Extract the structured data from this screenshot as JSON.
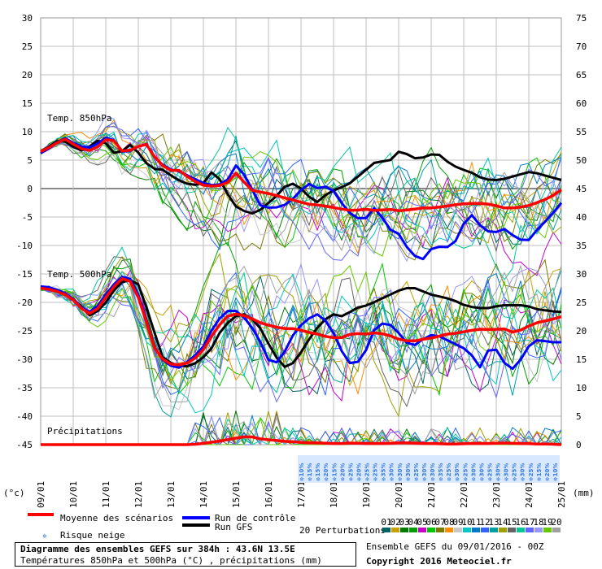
{
  "chart_data": {
    "type": "line",
    "title": "Diagramme des ensembles GEFS sur 384h : 43.6N 13.5E",
    "subtitle": "Températures 850hPa et 500hPa (°C) , précipitations (mm)",
    "ylabel_left": "(°c)",
    "ylabel_right": "(mm)",
    "left_ticks": [
      "30",
      "25",
      "20",
      "15",
      "10",
      "5",
      "0",
      "-5",
      "-10",
      "-15",
      "-20",
      "-25",
      "-30",
      "-35",
      "-40",
      "-45"
    ],
    "right_ticks": [
      "75",
      "70",
      "65",
      "60",
      "55",
      "50",
      "45",
      "40",
      "35",
      "30",
      "25",
      "20",
      "15",
      "10",
      "5",
      "0"
    ],
    "x_tick_labels": [
      "09/01",
      "10/01",
      "11/01",
      "12/01",
      "13/01",
      "14/01",
      "15/01",
      "16/01",
      "17/01",
      "18/01",
      "19/01",
      "20/01",
      "21/01",
      "22/01",
      "23/01",
      "24/01",
      "25/01"
    ],
    "panel_labels": [
      "Temp. 850hPa",
      "Temp. 500hPa",
      "Précipitations"
    ],
    "grid": true,
    "x_step_hours": 6,
    "mean_850": [
      6.5,
      7.5,
      8.8,
      7.6,
      6.5,
      7.4,
      9.3,
      6.6,
      6.8,
      8.2,
      5.1,
      3.2,
      3.2,
      1.6,
      0.6,
      0.4,
      0.7,
      3.0,
      -0.2,
      -0.6,
      -1.0,
      -1.6,
      -2.1,
      -2.7,
      -2.9,
      -3.2,
      -3.6,
      -3.9,
      -3.6,
      -3.9,
      -3.6,
      -3.9,
      -3.7,
      -3.4,
      -3.4,
      -3.1,
      -2.8,
      -2.6,
      -2.6,
      -2.8,
      -3.4,
      -3.4,
      -3.1,
      -2.4,
      -1.6,
      -0.2
    ],
    "control_850": [
      6.2,
      7.4,
      9.0,
      7.8,
      7.0,
      8.0,
      9.5,
      6.5,
      6.7,
      8.3,
      5.0,
      3.5,
      3.0,
      2.0,
      1.0,
      0.5,
      1.0,
      4.5,
      1.0,
      -3.0,
      -3.5,
      -3.0,
      -1.5,
      1.0,
      0.0,
      0.5,
      -2.5,
      -5.0,
      -5.5,
      -3.0,
      -7.0,
      -8.0,
      -11.5,
      -12.5,
      -10.0,
      -10.5,
      -9.0,
      -4.0,
      -6.5,
      -8.0,
      -7.0,
      -8.5,
      -9.5,
      -7.0,
      -5.0,
      -2.5
    ],
    "gfs_850": [
      6.5,
      7.6,
      8.8,
      7.5,
      6.7,
      7.6,
      9.0,
      6.2,
      6.6,
      8.0,
      5.0,
      3.5,
      3.3,
      2.0,
      1.0,
      0.6,
      1.0,
      3.5,
      0.0,
      -3.0,
      -4.0,
      -4.5,
      -3.0,
      -1.5,
      0.5,
      1.0,
      -1.0,
      -2.5,
      -1.0,
      0.0,
      0.5,
      2.0,
      3.5,
      5.0,
      4.5,
      6.5,
      6.0,
      5.0,
      6.0,
      6.0,
      4.5,
      3.5,
      3.0,
      2.0,
      1.5,
      1.5,
      2.0,
      2.5,
      3.0,
      2.5,
      2.0,
      1.5
    ],
    "mean_500": [
      -17.5,
      -17.8,
      -18.5,
      -19.8,
      -22.2,
      -21.0,
      -18.0,
      -15.8,
      -16.5,
      -22.5,
      -29.0,
      -30.8,
      -31.0,
      -30.5,
      -28.5,
      -25.2,
      -22.5,
      -22.0,
      -22.6,
      -23.6,
      -24.2,
      -24.6,
      -24.6,
      -25.2,
      -25.6,
      -26.2,
      -26.2,
      -25.4,
      -25.6,
      -25.3,
      -25.7,
      -26.5,
      -26.9,
      -26.5,
      -26.2,
      -25.6,
      -25.4,
      -25.0,
      -24.7,
      -24.8,
      -24.6,
      -25.4,
      -24.3,
      -23.5,
      -23.1,
      -22.5
    ],
    "control_500": [
      -17.2,
      -17.4,
      -18.3,
      -19.6,
      -22.0,
      -20.5,
      -17.5,
      -15.5,
      -16.0,
      -22.0,
      -29.0,
      -31.0,
      -31.5,
      -30.0,
      -28.0,
      -24.0,
      -21.5,
      -21.5,
      -23.5,
      -27.0,
      -31.5,
      -29.0,
      -25.0,
      -23.0,
      -22.0,
      -24.0,
      -28.5,
      -31.5,
      -29.0,
      -24.0,
      -23.5,
      -25.5,
      -28.0,
      -26.5,
      -25.5,
      -26.5,
      -27.5,
      -28.5,
      -31.5,
      -27.0,
      -30.5,
      -32.0,
      -28.0,
      -26.5,
      -27.0,
      -27.0
    ],
    "gfs_500": [
      -17.5,
      -17.8,
      -18.6,
      -19.8,
      -22.3,
      -21.2,
      -18.0,
      -15.8,
      -16.5,
      -22.5,
      -29.5,
      -31.0,
      -31.3,
      -30.5,
      -28.5,
      -24.5,
      -22.5,
      -22.0,
      -24.0,
      -28.0,
      -31.5,
      -30.5,
      -27.0,
      -24.0,
      -22.0,
      -22.5,
      -21.0,
      -20.5,
      -19.5,
      -18.5,
      -17.5,
      -17.5,
      -18.5,
      -19.0,
      -19.5,
      -20.5,
      -21.0,
      -21.0,
      -20.5,
      -20.5,
      -20.5,
      -21.2,
      -21.5,
      -21.7
    ],
    "mean_precip": [
      0.0,
      0.0,
      0.0,
      0.0,
      0.0,
      0.0,
      0.0,
      0.0,
      0.0,
      0.0,
      0.0,
      0.0,
      0.0,
      0.0,
      0.2,
      0.5,
      0.8,
      1.2,
      1.5,
      1.0,
      0.8,
      0.6,
      0.5,
      0.3,
      0.3,
      0.2,
      0.2,
      0.3,
      0.2,
      0.2,
      0.2,
      0.3,
      0.3,
      0.2,
      0.2,
      0.1,
      0.1,
      0.2,
      0.2,
      0.2,
      0.3,
      0.2,
      0.2,
      0.1,
      0.1,
      0.0
    ],
    "snow_risk_labels": [
      "10%",
      "15%",
      "15%",
      "20%",
      "15%",
      "20%",
      "25%",
      "20%",
      "25%",
      "25%",
      "35%",
      "30%",
      "30%",
      "30%",
      "25%",
      "30%",
      "30%",
      "35%",
      "25%",
      "30%",
      "25%",
      "30%",
      "30%",
      "25%",
      "30%",
      "30%",
      "25%",
      "30%",
      "25%",
      "15%",
      "20%",
      "10%"
    ],
    "legend": {
      "mean": "Moyenne des scénarios",
      "control": "Run de contrôle",
      "gfs": "Run GFS",
      "snow": "Risque neige",
      "perturbations": "20 Perturbations"
    },
    "perturbation_ids": [
      "01",
      "02",
      "03",
      "04",
      "05",
      "06",
      "07",
      "08",
      "09",
      "10",
      "11",
      "12",
      "13",
      "14",
      "15",
      "16",
      "17",
      "18",
      "19",
      "20"
    ],
    "colors": {
      "mean": "#ff0000",
      "control": "#0000ff",
      "gfs": "#000000",
      "grid": "#bfbfbf",
      "snow": "#3a7bd5",
      "perturbations": [
        "#006464",
        "#c8a000",
        "#007a00",
        "#00a000",
        "#c800c8",
        "#00c800",
        "#7a7a00",
        "#ff8c00",
        "#c8c8c8",
        "#00c8c8",
        "#007ac8",
        "#3264ff",
        "#00a0a0",
        "#a0a000",
        "#646464",
        "#00c896",
        "#6464ff",
        "#9696ff",
        "#64c800",
        "#a0a0a0"
      ]
    }
  },
  "footer": {
    "title": "Diagramme des ensembles GEFS sur 384h : 43.6N 13.5E",
    "subtitle": "Températures 850hPa et 500hPa (°C) , précipitations (mm)",
    "run_info": "Ensemble GEFS du 09/01/2016 - 00Z",
    "copyright": "Copyright 2016 Meteociel.fr"
  }
}
